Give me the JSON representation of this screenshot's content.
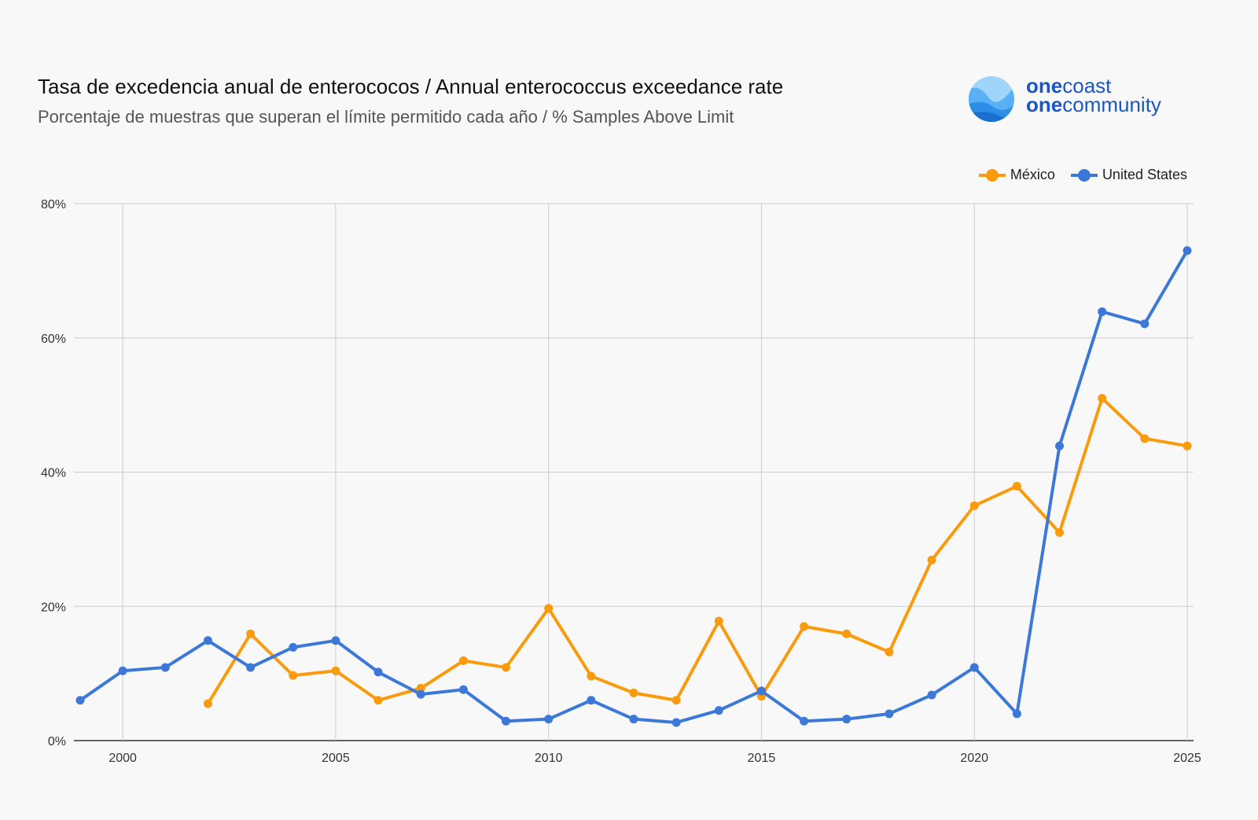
{
  "chart_data": {
    "type": "line",
    "title": "Tasa de excedencia anual de enterococos / Annual enterococcus exceedance rate",
    "subtitle": "Porcentaje de muestras que superan el límite permitido cada año / % Samples Above Limit",
    "xlabel": "",
    "ylabel": "",
    "xlim": [
      1999,
      2025
    ],
    "ylim": [
      0,
      80
    ],
    "x_ticks": [
      "2000",
      "2005",
      "2010",
      "2015",
      "2020",
      "2025"
    ],
    "y_ticks": [
      "0%",
      "20%",
      "40%",
      "60%",
      "80%"
    ],
    "grid": true,
    "legend_position": "top-right",
    "series": [
      {
        "name": "México",
        "color": "#f99b0c",
        "x": [
          2002,
          2003,
          2004,
          2005,
          2006,
          2007,
          2008,
          2009,
          2010,
          2011,
          2012,
          2013,
          2014,
          2015,
          2016,
          2017,
          2018,
          2019,
          2020,
          2021,
          2022,
          2023,
          2024,
          2025
        ],
        "values": [
          5.5,
          15.9,
          9.7,
          10.4,
          6.0,
          7.8,
          11.9,
          10.9,
          19.7,
          9.6,
          7.1,
          6.0,
          17.8,
          6.6,
          17.0,
          15.9,
          13.2,
          26.9,
          35.0,
          37.9,
          31.0,
          51.0,
          45.0,
          43.9
        ]
      },
      {
        "name": "United States",
        "color": "#3b78d8",
        "x": [
          1999,
          2000,
          2001,
          2002,
          2003,
          2004,
          2005,
          2006,
          2007,
          2008,
          2009,
          2010,
          2011,
          2012,
          2013,
          2014,
          2015,
          2016,
          2017,
          2018,
          2019,
          2020,
          2021,
          2022,
          2023,
          2024,
          2025
        ],
        "values": [
          6.0,
          10.4,
          10.9,
          14.9,
          10.9,
          13.9,
          14.9,
          10.2,
          6.9,
          7.6,
          2.9,
          3.2,
          6.0,
          3.2,
          2.7,
          4.5,
          7.4,
          2.9,
          3.2,
          4.0,
          6.8,
          10.9,
          4.0,
          43.9,
          63.9,
          62.1,
          73.0
        ]
      }
    ]
  },
  "logo": {
    "line1_bold": "one",
    "line1": "coast",
    "line2_bold": "one",
    "line2": "community"
  }
}
